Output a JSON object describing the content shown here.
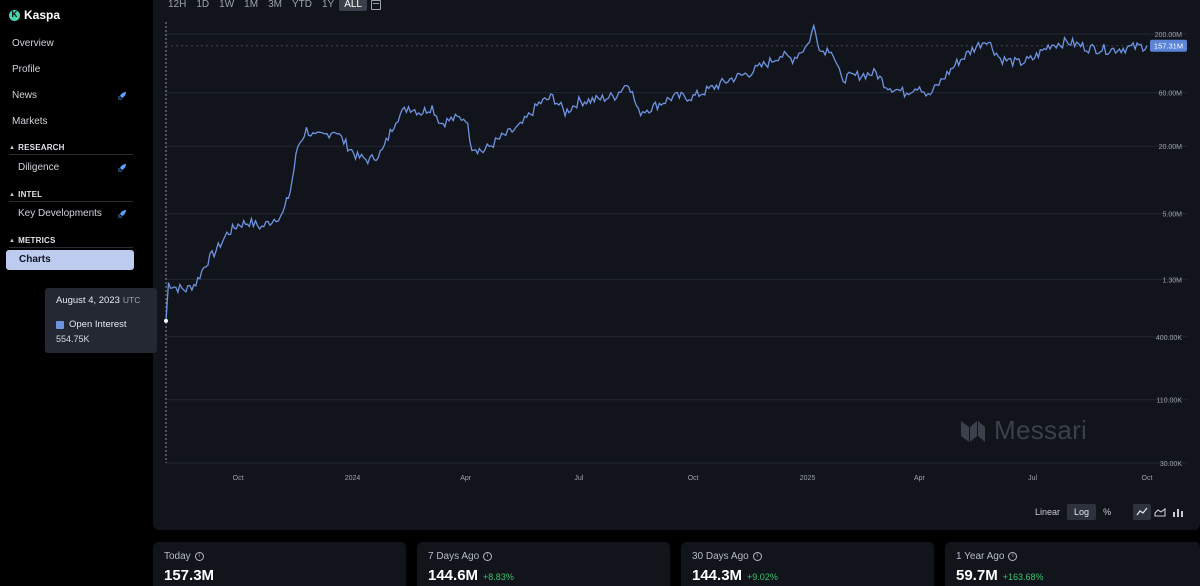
{
  "brand": {
    "name": "Kaspa",
    "logo_glyph": "K"
  },
  "nav": {
    "overview": "Overview",
    "profile": "Profile",
    "news": "News",
    "markets": "Markets",
    "research_header": "RESEARCH",
    "diligence": "Diligence",
    "intel_header": "INTEL",
    "key_developments": "Key Developments",
    "metrics_header": "METRICS",
    "charts": "Charts"
  },
  "timeframes": [
    "12H",
    "1D",
    "1W",
    "1M",
    "3M",
    "YTD",
    "1Y",
    "ALL"
  ],
  "active_timeframe": "ALL",
  "tooltip": {
    "date": "August 4, 2023",
    "tz": "UTC",
    "series": "Open Interest",
    "value": "554.75K"
  },
  "watermark": "Messari",
  "scale_options": {
    "linear": "Linear",
    "log": "Log",
    "percent": "%",
    "active": "Log"
  },
  "chart_types": [
    "line-chart-icon",
    "area-chart-icon",
    "bar-chart-icon"
  ],
  "stats": [
    {
      "label": "Today",
      "value": "157.3M",
      "change": ""
    },
    {
      "label": "7 Days Ago",
      "value": "144.6M",
      "change": "+8.83%"
    },
    {
      "label": "30 Days Ago",
      "value": "144.3M",
      "change": "+9.02%"
    },
    {
      "label": "1 Year Ago",
      "value": "59.7M",
      "change": "+163.68%"
    }
  ],
  "colors": {
    "line": "#6e93e0",
    "accent": "#bccbef",
    "positive": "#3cc46a",
    "current_badge": "#5b84d6"
  },
  "chart_data": {
    "type": "line",
    "title": "",
    "xlabel": "",
    "ylabel": "",
    "series_name": "Open Interest",
    "yscale": "log",
    "grid": true,
    "ylim": [
      30000,
      200000000
    ],
    "y_ticks": [
      {
        "label": "200.00M",
        "value": 200000000
      },
      {
        "label": "60.00M",
        "value": 60000000
      },
      {
        "label": "20.00M",
        "value": 20000000
      },
      {
        "label": "5.00M",
        "value": 5000000
      },
      {
        "label": "1.30M",
        "value": 1300000
      },
      {
        "label": "400.00K",
        "value": 400000
      },
      {
        "label": "110.00K",
        "value": 110000
      },
      {
        "label": "30.00K",
        "value": 30000
      }
    ],
    "x_ticks": [
      {
        "label": "Oct",
        "date": "2023-10-01"
      },
      {
        "label": "2024",
        "date": "2024-01-01"
      },
      {
        "label": "Apr",
        "date": "2024-04-01"
      },
      {
        "label": "Jul",
        "date": "2024-07-01"
      },
      {
        "label": "Oct",
        "date": "2024-10-01"
      },
      {
        "label": "2025",
        "date": "2025-01-01"
      },
      {
        "label": "Apr",
        "date": "2025-04-01"
      },
      {
        "label": "Jul",
        "date": "2025-07-01"
      },
      {
        "label": "Oct",
        "date": "2025-10-01"
      }
    ],
    "current_value_label": "157.31M",
    "x_range": [
      "2023-08-04",
      "2025-10-01"
    ],
    "points": [
      [
        "2023-08-04",
        554750
      ],
      [
        "2023-08-06",
        1200000
      ],
      [
        "2023-08-12",
        1100000
      ],
      [
        "2023-08-20",
        1050000
      ],
      [
        "2023-08-28",
        1200000
      ],
      [
        "2023-09-05",
        1800000
      ],
      [
        "2023-09-15",
        2500000
      ],
      [
        "2023-09-22",
        3300000
      ],
      [
        "2023-10-01",
        4000000
      ],
      [
        "2023-10-10",
        4200000
      ],
      [
        "2023-10-20",
        3800000
      ],
      [
        "2023-10-30",
        4500000
      ],
      [
        "2023-11-06",
        5000000
      ],
      [
        "2023-11-12",
        8000000
      ],
      [
        "2023-11-18",
        20000000
      ],
      [
        "2023-11-25",
        28000000
      ],
      [
        "2023-12-02",
        24000000
      ],
      [
        "2023-12-10",
        25000000
      ],
      [
        "2023-12-18",
        28000000
      ],
      [
        "2023-12-25",
        22000000
      ],
      [
        "2024-01-05",
        16000000
      ],
      [
        "2024-01-15",
        15000000
      ],
      [
        "2024-01-25",
        18000000
      ],
      [
        "2024-02-05",
        35000000
      ],
      [
        "2024-02-15",
        45000000
      ],
      [
        "2024-02-25",
        40000000
      ],
      [
        "2024-03-05",
        45000000
      ],
      [
        "2024-03-12",
        32000000
      ],
      [
        "2024-03-22",
        35000000
      ],
      [
        "2024-04-01",
        36000000
      ],
      [
        "2024-04-06",
        20000000
      ],
      [
        "2024-04-15",
        18000000
      ],
      [
        "2024-04-30",
        24000000
      ],
      [
        "2024-05-15",
        30000000
      ],
      [
        "2024-05-30",
        48000000
      ],
      [
        "2024-06-10",
        55000000
      ],
      [
        "2024-06-20",
        40000000
      ],
      [
        "2024-07-01",
        50000000
      ],
      [
        "2024-07-15",
        52000000
      ],
      [
        "2024-07-30",
        56000000
      ],
      [
        "2024-08-10",
        75000000
      ],
      [
        "2024-08-18",
        40000000
      ],
      [
        "2024-08-30",
        45000000
      ],
      [
        "2024-09-15",
        55000000
      ],
      [
        "2024-10-01",
        55000000
      ],
      [
        "2024-10-15",
        65000000
      ],
      [
        "2024-11-01",
        80000000
      ],
      [
        "2024-11-15",
        90000000
      ],
      [
        "2024-11-30",
        110000000
      ],
      [
        "2024-12-10",
        130000000
      ],
      [
        "2024-12-20",
        120000000
      ],
      [
        "2025-01-01",
        160000000
      ],
      [
        "2025-01-06",
        230000000
      ],
      [
        "2025-01-12",
        140000000
      ],
      [
        "2025-01-20",
        150000000
      ],
      [
        "2025-01-28",
        80000000
      ],
      [
        "2025-02-10",
        85000000
      ],
      [
        "2025-02-25",
        90000000
      ],
      [
        "2025-03-05",
        70000000
      ],
      [
        "2025-03-20",
        60000000
      ],
      [
        "2025-04-01",
        70000000
      ],
      [
        "2025-04-08",
        55000000
      ],
      [
        "2025-04-20",
        80000000
      ],
      [
        "2025-05-01",
        110000000
      ],
      [
        "2025-05-15",
        150000000
      ],
      [
        "2025-05-25",
        180000000
      ],
      [
        "2025-06-05",
        120000000
      ],
      [
        "2025-06-20",
        110000000
      ],
      [
        "2025-07-01",
        120000000
      ],
      [
        "2025-07-15",
        160000000
      ],
      [
        "2025-07-30",
        170000000
      ],
      [
        "2025-08-15",
        150000000
      ],
      [
        "2025-09-01",
        145000000
      ],
      [
        "2025-09-15",
        150000000
      ],
      [
        "2025-10-01",
        157310000
      ]
    ]
  }
}
